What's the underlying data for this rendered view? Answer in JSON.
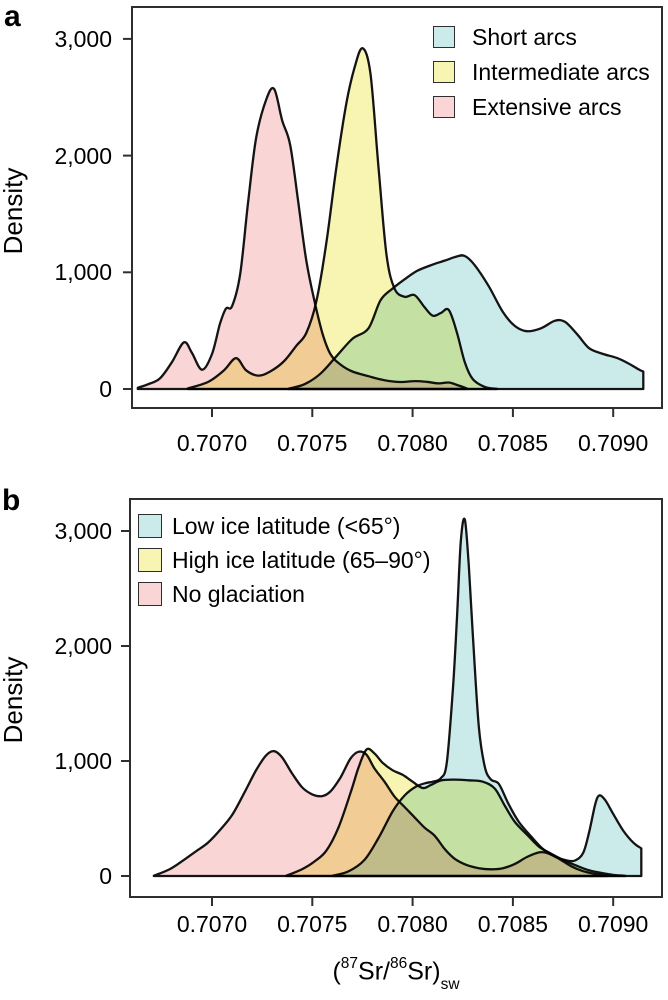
{
  "figure": {
    "xlabel_text": "(87Sr/86Sr)sw",
    "xlabel_parts": {
      "p1": "(",
      "sup1": "87",
      "p2": "Sr/",
      "sup2": "86",
      "p3": "Sr)",
      "sub": "sw"
    },
    "curve_outline_color": "#141414",
    "axis_color": "#2e2e2e"
  },
  "chart_data": [
    {
      "type": "area",
      "kind": "kernel-density",
      "panel_label": "a",
      "ylabel": "Density",
      "xlim": [
        0.70661,
        0.70923
      ],
      "ylim": [
        0,
        3200
      ],
      "grid": false,
      "legend_position": "top-right",
      "x_ticks": [
        {
          "value": 0.707,
          "label": "0.7070"
        },
        {
          "value": 0.7075,
          "label": "0.7075"
        },
        {
          "value": 0.708,
          "label": "0.7080"
        },
        {
          "value": 0.7085,
          "label": "0.7085"
        },
        {
          "value": 0.709,
          "label": "0.7090"
        }
      ],
      "y_ticks": [
        {
          "value": 0,
          "label": "0"
        },
        {
          "value": 1000,
          "label": "1,000"
        },
        {
          "value": 2000,
          "label": "2,000"
        },
        {
          "value": 3000,
          "label": "3,000"
        }
      ],
      "series": [
        {
          "name": "Short arcs",
          "color": "#cbebea",
          "points": [
            [
              0.70738,
              2
            ],
            [
              0.70746,
              40
            ],
            [
              0.70754,
              130
            ],
            [
              0.70762,
              280
            ],
            [
              0.7077,
              430
            ],
            [
              0.70778,
              520
            ],
            [
              0.70784,
              760
            ],
            [
              0.7079,
              860
            ],
            [
              0.70796,
              940
            ],
            [
              0.70802,
              1010
            ],
            [
              0.70809,
              1060
            ],
            [
              0.70816,
              1100
            ],
            [
              0.70822,
              1135
            ],
            [
              0.70826,
              1140
            ],
            [
              0.70831,
              1060
            ],
            [
              0.70838,
              880
            ],
            [
              0.70845,
              660
            ],
            [
              0.70851,
              540
            ],
            [
              0.70857,
              495
            ],
            [
              0.70864,
              520
            ],
            [
              0.70871,
              585
            ],
            [
              0.70876,
              575
            ],
            [
              0.70882,
              470
            ],
            [
              0.70888,
              350
            ],
            [
              0.70895,
              300
            ],
            [
              0.70902,
              265
            ],
            [
              0.70908,
              215
            ],
            [
              0.70913,
              165
            ],
            [
              0.70915,
              150
            ]
          ]
        },
        {
          "name": "Intermediate arcs",
          "color": "#f8f4b2",
          "points": [
            [
              0.70688,
              5
            ],
            [
              0.70698,
              60
            ],
            [
              0.70706,
              160
            ],
            [
              0.70712,
              265
            ],
            [
              0.70717,
              160
            ],
            [
              0.70723,
              115
            ],
            [
              0.70729,
              150
            ],
            [
              0.70736,
              240
            ],
            [
              0.70742,
              370
            ],
            [
              0.70747,
              480
            ],
            [
              0.70752,
              750
            ],
            [
              0.70757,
              1250
            ],
            [
              0.70762,
              1900
            ],
            [
              0.70767,
              2450
            ],
            [
              0.70771,
              2750
            ],
            [
              0.70775,
              2920
            ],
            [
              0.70779,
              2700
            ],
            [
              0.70783,
              1900
            ],
            [
              0.70787,
              1150
            ],
            [
              0.70791,
              860
            ],
            [
              0.70796,
              790
            ],
            [
              0.70801,
              805
            ],
            [
              0.70806,
              700
            ],
            [
              0.7081,
              628
            ],
            [
              0.70814,
              650
            ],
            [
              0.70818,
              678
            ],
            [
              0.70822,
              490
            ],
            [
              0.70826,
              230
            ],
            [
              0.7083,
              85
            ],
            [
              0.70836,
              18
            ],
            [
              0.70842,
              2
            ]
          ]
        },
        {
          "name": "Extensive arcs",
          "color": "#f9d5d5",
          "points": [
            [
              0.70663,
              10
            ],
            [
              0.70668,
              40
            ],
            [
              0.70674,
              90
            ],
            [
              0.7068,
              230
            ],
            [
              0.70686,
              400
            ],
            [
              0.7069,
              310
            ],
            [
              0.70695,
              165
            ],
            [
              0.707,
              300
            ],
            [
              0.70704,
              560
            ],
            [
              0.70707,
              690
            ],
            [
              0.7071,
              710
            ],
            [
              0.70714,
              980
            ],
            [
              0.70718,
              1600
            ],
            [
              0.70722,
              2150
            ],
            [
              0.70727,
              2480
            ],
            [
              0.70731,
              2570
            ],
            [
              0.70735,
              2300
            ],
            [
              0.70739,
              2090
            ],
            [
              0.70743,
              1600
            ],
            [
              0.70747,
              1100
            ],
            [
              0.70751,
              760
            ],
            [
              0.70755,
              480
            ],
            [
              0.70759,
              300
            ],
            [
              0.70764,
              210
            ],
            [
              0.7077,
              150
            ],
            [
              0.70778,
              110
            ],
            [
              0.70786,
              75
            ],
            [
              0.70794,
              60
            ],
            [
              0.70801,
              68
            ],
            [
              0.70807,
              62
            ],
            [
              0.70813,
              48
            ],
            [
              0.70818,
              56
            ],
            [
              0.70822,
              35
            ],
            [
              0.70827,
              5
            ]
          ]
        }
      ]
    },
    {
      "type": "area",
      "kind": "kernel-density",
      "panel_label": "b",
      "ylabel": "Density",
      "xlim": [
        0.70661,
        0.70923
      ],
      "ylim": [
        0,
        3200
      ],
      "grid": false,
      "legend_position": "top-left",
      "x_ticks": [
        {
          "value": 0.707,
          "label": "0.7070"
        },
        {
          "value": 0.7075,
          "label": "0.7075"
        },
        {
          "value": 0.708,
          "label": "0.7080"
        },
        {
          "value": 0.7085,
          "label": "0.7085"
        },
        {
          "value": 0.709,
          "label": "0.7090"
        }
      ],
      "y_ticks": [
        {
          "value": 0,
          "label": "0"
        },
        {
          "value": 1000,
          "label": "1,000"
        },
        {
          "value": 2000,
          "label": "2,000"
        },
        {
          "value": 3000,
          "label": "3,000"
        }
      ],
      "series": [
        {
          "name": "Low ice latitude (<65°)",
          "color": "#cbebea",
          "points": [
            [
              0.7076,
              2
            ],
            [
              0.70768,
              40
            ],
            [
              0.70776,
              140
            ],
            [
              0.70783,
              330
            ],
            [
              0.7079,
              560
            ],
            [
              0.70796,
              700
            ],
            [
              0.70802,
              780
            ],
            [
              0.70807,
              810
            ],
            [
              0.7081,
              820
            ],
            [
              0.70814,
              850
            ],
            [
              0.70817,
              980
            ],
            [
              0.7082,
              1600
            ],
            [
              0.70822,
              2200
            ],
            [
              0.70824,
              2900
            ],
            [
              0.70826,
              3100
            ],
            [
              0.70828,
              2700
            ],
            [
              0.7083,
              2100
            ],
            [
              0.70833,
              1300
            ],
            [
              0.70836,
              950
            ],
            [
              0.70839,
              840
            ],
            [
              0.70843,
              800
            ],
            [
              0.70848,
              620
            ],
            [
              0.70853,
              470
            ],
            [
              0.70859,
              345
            ],
            [
              0.70865,
              235
            ],
            [
              0.70871,
              170
            ],
            [
              0.70877,
              135
            ],
            [
              0.70881,
              135
            ],
            [
              0.70885,
              200
            ],
            [
              0.70888,
              380
            ],
            [
              0.70891,
              620
            ],
            [
              0.70893,
              700
            ],
            [
              0.70896,
              660
            ],
            [
              0.709,
              540
            ],
            [
              0.70905,
              395
            ],
            [
              0.7091,
              290
            ],
            [
              0.70914,
              240
            ]
          ]
        },
        {
          "name": "High ice latitude (65–90°)",
          "color": "#f8f4b2",
          "points": [
            [
              0.70737,
              2
            ],
            [
              0.70745,
              60
            ],
            [
              0.70751,
              125
            ],
            [
              0.70757,
              220
            ],
            [
              0.70763,
              420
            ],
            [
              0.70769,
              720
            ],
            [
              0.70773,
              940
            ],
            [
              0.70777,
              1100
            ],
            [
              0.70781,
              1065
            ],
            [
              0.70785,
              985
            ],
            [
              0.7079,
              920
            ],
            [
              0.70795,
              880
            ],
            [
              0.708,
              820
            ],
            [
              0.70805,
              765
            ],
            [
              0.70809,
              790
            ],
            [
              0.70814,
              830
            ],
            [
              0.70821,
              838
            ],
            [
              0.70828,
              832
            ],
            [
              0.70835,
              820
            ],
            [
              0.70841,
              760
            ],
            [
              0.70846,
              610
            ],
            [
              0.70851,
              470
            ],
            [
              0.70857,
              360
            ],
            [
              0.70863,
              255
            ],
            [
              0.70869,
              195
            ],
            [
              0.70875,
              140
            ],
            [
              0.70881,
              95
            ],
            [
              0.70887,
              55
            ],
            [
              0.70893,
              30
            ],
            [
              0.709,
              10
            ],
            [
              0.70906,
              2
            ]
          ]
        },
        {
          "name": "No glaciation",
          "color": "#f9d5d5",
          "points": [
            [
              0.70671,
              2
            ],
            [
              0.70679,
              60
            ],
            [
              0.70686,
              140
            ],
            [
              0.70692,
              215
            ],
            [
              0.70698,
              290
            ],
            [
              0.70704,
              400
            ],
            [
              0.7071,
              530
            ],
            [
              0.70716,
              720
            ],
            [
              0.70722,
              920
            ],
            [
              0.70727,
              1050
            ],
            [
              0.70731,
              1085
            ],
            [
              0.70735,
              1030
            ],
            [
              0.7074,
              890
            ],
            [
              0.70745,
              770
            ],
            [
              0.7075,
              710
            ],
            [
              0.70755,
              695
            ],
            [
              0.70759,
              735
            ],
            [
              0.70764,
              855
            ],
            [
              0.70769,
              1020
            ],
            [
              0.70773,
              1080
            ],
            [
              0.70777,
              1055
            ],
            [
              0.70781,
              935
            ],
            [
              0.70786,
              820
            ],
            [
              0.70791,
              690
            ],
            [
              0.70796,
              600
            ],
            [
              0.70801,
              510
            ],
            [
              0.70806,
              420
            ],
            [
              0.70811,
              350
            ],
            [
              0.70816,
              235
            ],
            [
              0.70821,
              150
            ],
            [
              0.70827,
              95
            ],
            [
              0.70833,
              68
            ],
            [
              0.70839,
              58
            ],
            [
              0.70845,
              68
            ],
            [
              0.70851,
              105
            ],
            [
              0.70857,
              165
            ],
            [
              0.70863,
              205
            ],
            [
              0.70867,
              200
            ],
            [
              0.70873,
              150
            ],
            [
              0.70879,
              85
            ],
            [
              0.70885,
              42
            ],
            [
              0.70891,
              18
            ],
            [
              0.70897,
              4
            ]
          ]
        }
      ]
    }
  ]
}
